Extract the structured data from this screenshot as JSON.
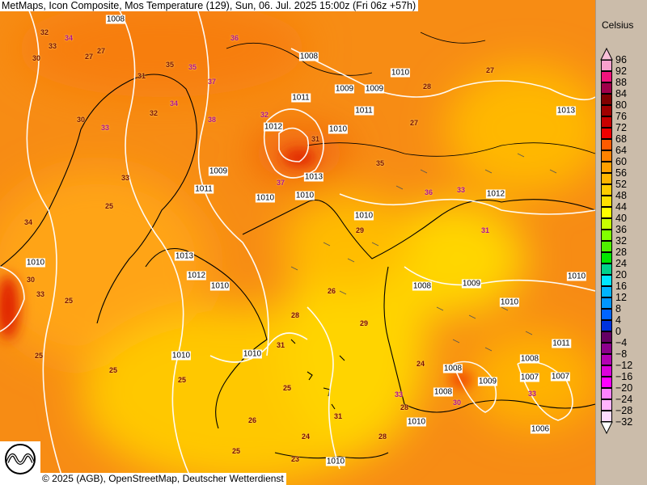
{
  "header": {
    "title": "MetMaps, Icon Composite, Mos Temperature (129), Sun, 06. Jul. 2025 15:00z (Fri 06z +57h)"
  },
  "footer": {
    "credit": "© 2025 (AGB), OpenStreetMap, Deutscher Wetterdienst",
    "logo_text": "METMAPS"
  },
  "legend": {
    "unit": "Celsius",
    "labels": [
      "96",
      "92",
      "88",
      "84",
      "80",
      "76",
      "72",
      "68",
      "64",
      "60",
      "56",
      "52",
      "48",
      "44",
      "40",
      "36",
      "32",
      "28",
      "24",
      "20",
      "16",
      "12",
      "8",
      "4",
      "0",
      "−4",
      "−8",
      "−12",
      "−16",
      "−20",
      "−24",
      "−28",
      "−32"
    ],
    "colors": [
      "#f7a0cc",
      "#f0147c",
      "#a0004a",
      "#800000",
      "#a00000",
      "#c80000",
      "#f00000",
      "#ff5a00",
      "#ff8200",
      "#ffa000",
      "#ffb400",
      "#ffcc00",
      "#ffe000",
      "#ffff00",
      "#c8ff00",
      "#82ff00",
      "#50f000",
      "#00e600",
      "#00d28c",
      "#00e6ff",
      "#00b4ff",
      "#0096ff",
      "#0064ff",
      "#0032dc",
      "#640064",
      "#8c008c",
      "#b400b4",
      "#dc00dc",
      "#ff00ff",
      "#ff82ff",
      "#ffb4ff",
      "#ffdcff"
    ],
    "top_arrow_color": "#f8c0d8",
    "bottom_arrow_color": "#ffffff"
  },
  "temperatures": [
    "32",
    "34",
    "30",
    "33",
    "27",
    "35",
    "31",
    "37",
    "36",
    "35",
    "34",
    "38",
    "30",
    "32",
    "33",
    "25",
    "33",
    "34",
    "27",
    "37",
    "32",
    "28",
    "26",
    "29",
    "25",
    "31",
    "35",
    "28",
    "27",
    "36",
    "30",
    "33",
    "27",
    "25",
    "25",
    "26",
    "31",
    "29",
    "25",
    "31",
    "25",
    "24",
    "23",
    "25",
    "28",
    "24",
    "28",
    "33",
    "30",
    "33",
    "33",
    "31"
  ],
  "pressures": [
    "1008",
    "1009",
    "1008",
    "1009",
    "1010",
    "1011",
    "1011",
    "1010",
    "1012",
    "1013",
    "1009",
    "1011",
    "1010",
    "1012",
    "1010",
    "1010",
    "1013",
    "1012",
    "1010",
    "1010",
    "1008",
    "1009",
    "1010",
    "1010",
    "1010",
    "1010",
    "1008",
    "1009",
    "1007",
    "1011",
    "1008",
    "1006",
    "1010",
    "1007",
    "1013",
    "1010",
    "1008"
  ]
}
